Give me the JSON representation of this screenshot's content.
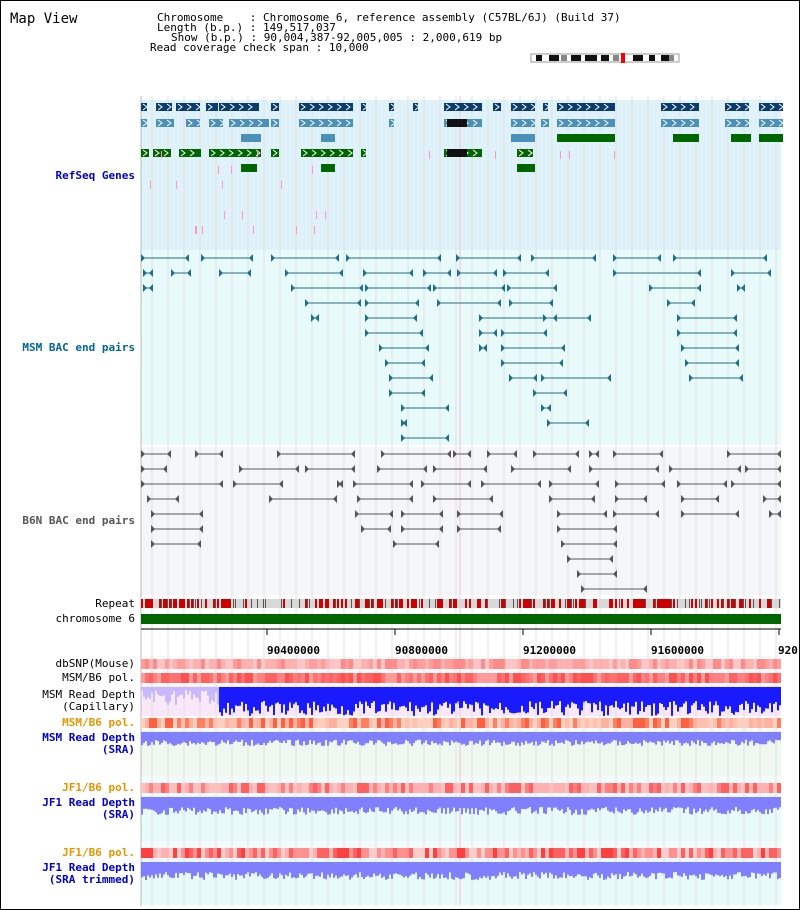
{
  "header": {
    "title": "Map View",
    "chromosome_key": "Chromosome",
    "chromosome_value": "Chromosome 6, reference assembly (C57BL/6J) (Build 37)",
    "length_key": "Length (b.p.)",
    "length_value": "149,517,037",
    "show_key": "Show (b.p.)",
    "show_value": "90,004,387-92,005,005 : 2,000,619 bp",
    "span_key": "Read coverage check span",
    "span_value": "10,000"
  },
  "tracks": {
    "refseq": "RefSeq Genes",
    "msm_bac": "MSM BAC end pairs",
    "b6n_bac": "B6N BAC end pairs",
    "repeat": "Repeat",
    "chromosome": "chromosome 6",
    "dbsnp": "dbSNP(Mouse)",
    "msm_b6_pol_1": "MSM/B6 pol.",
    "msm_read_depth_cap_1": "MSM Read Depth",
    "msm_read_depth_cap_2": "(Capillary)",
    "msm_b6_pol_2": "MSM/B6 pol.",
    "msm_read_depth_sra_1": "MSM Read Depth",
    "msm_read_depth_sra_2": "(SRA)",
    "jf1_b6_pol_1": "JF1/B6 pol.",
    "jf1_read_depth_sra_1": "JF1 Read Depth",
    "jf1_read_depth_sra_2": "(SRA)",
    "jf1_b6_pol_2": "JF1/B6 pol.",
    "jf1_read_depth_trim_1": "JF1 Read Depth",
    "jf1_read_depth_trim_2": "(SRA trimmed)"
  },
  "axis": {
    "ticks": [
      "90400000",
      "90800000",
      "91200000",
      "91600000",
      "920"
    ]
  },
  "colors": {
    "refseq_bg": "#dff2fa",
    "msm_bg": "#e8fafa",
    "b6n_bg": "#f4f6fa",
    "dark_navy": "#0b3c6e",
    "mid_blue": "#4a90b8",
    "green": "#006600",
    "pink": "#ff99bb",
    "teal_line": "#1f6f8b",
    "gray_line": "#555555",
    "repeat_red": "#cc0000",
    "depth_blue": "#1a1aff",
    "depth_lightblue": "#8080ff"
  }
}
